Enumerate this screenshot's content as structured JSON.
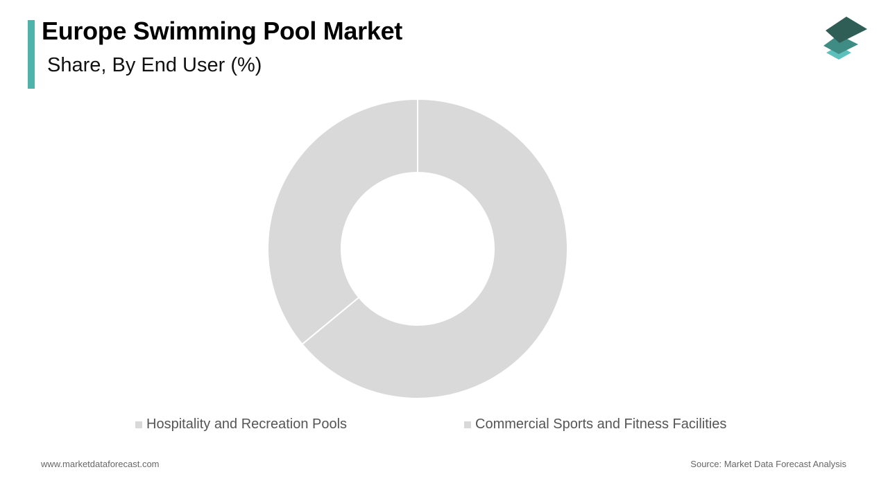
{
  "header": {
    "title": "Europe Swimming Pool Market",
    "subtitle": "Share, By End User (%)"
  },
  "colors": {
    "accent": "#4db3ac",
    "slice": "#d9d9d9",
    "logo_dark": "#2f5e56",
    "logo_mid": "#3f8c84",
    "logo_light": "#5cc1bb"
  },
  "icons": {
    "logo": "stacked-layers-icon"
  },
  "chart_data": {
    "type": "pie",
    "variant": "donut",
    "categories": [
      "Hospitality and Recreation Pools",
      "Commercial Sports and Fitness Facilities"
    ],
    "values": [
      64,
      36
    ],
    "unit": "%",
    "legend_position": "bottom",
    "data_labels": false
  },
  "footer": {
    "website": "www.marketdataforecast.com",
    "source": "Source: Market Data Forecast Analysis"
  }
}
